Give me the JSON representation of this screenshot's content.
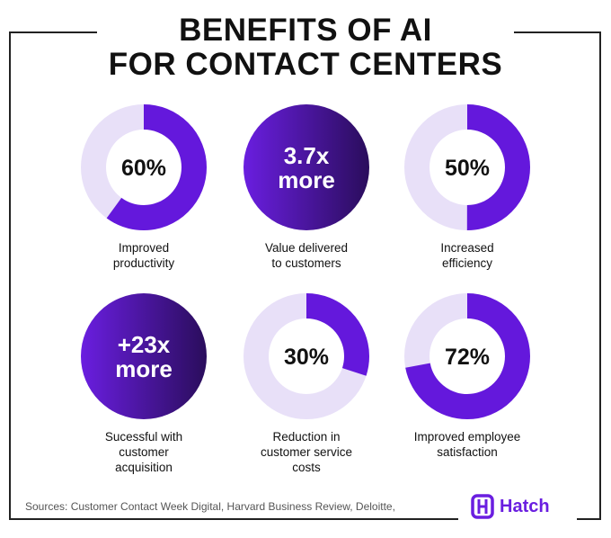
{
  "title": {
    "line1": "BENEFITS OF AI",
    "line2": "FOR CONTACT CENTERS"
  },
  "colors": {
    "accent": "#6418dc",
    "track": "#e8e0f8",
    "gradient_start": "#6a1ee0",
    "gradient_end": "#2a0d5c"
  },
  "chart_data": {
    "type": "pie",
    "title": "BENEFITS OF AI FOR CONTACT CENTERS",
    "items": [
      {
        "kind": "donut",
        "value": 60,
        "display": "60%",
        "label": [
          "Improved",
          "productivity"
        ]
      },
      {
        "kind": "circle",
        "display": [
          "3.7x",
          "more"
        ],
        "value": 3.7,
        "label": [
          "Value delivered",
          "to customers"
        ]
      },
      {
        "kind": "donut",
        "value": 50,
        "display": "50%",
        "label": [
          "Increased",
          "efficiency"
        ]
      },
      {
        "kind": "circle",
        "display": [
          "+23x",
          "more"
        ],
        "value": 23,
        "label": [
          "Sucessful with",
          "customer",
          "acquisition"
        ]
      },
      {
        "kind": "donut",
        "value": 30,
        "display": "30%",
        "label": [
          "Reduction in",
          "customer service",
          "costs"
        ]
      },
      {
        "kind": "donut",
        "value": 72,
        "display": "72%",
        "label": [
          "Improved employee",
          "satisfaction"
        ]
      }
    ]
  },
  "footer": {
    "sources": "Sources: Customer Contact Week Digital, Harvard Business Review, Deloitte,",
    "brand": "Hatch"
  }
}
